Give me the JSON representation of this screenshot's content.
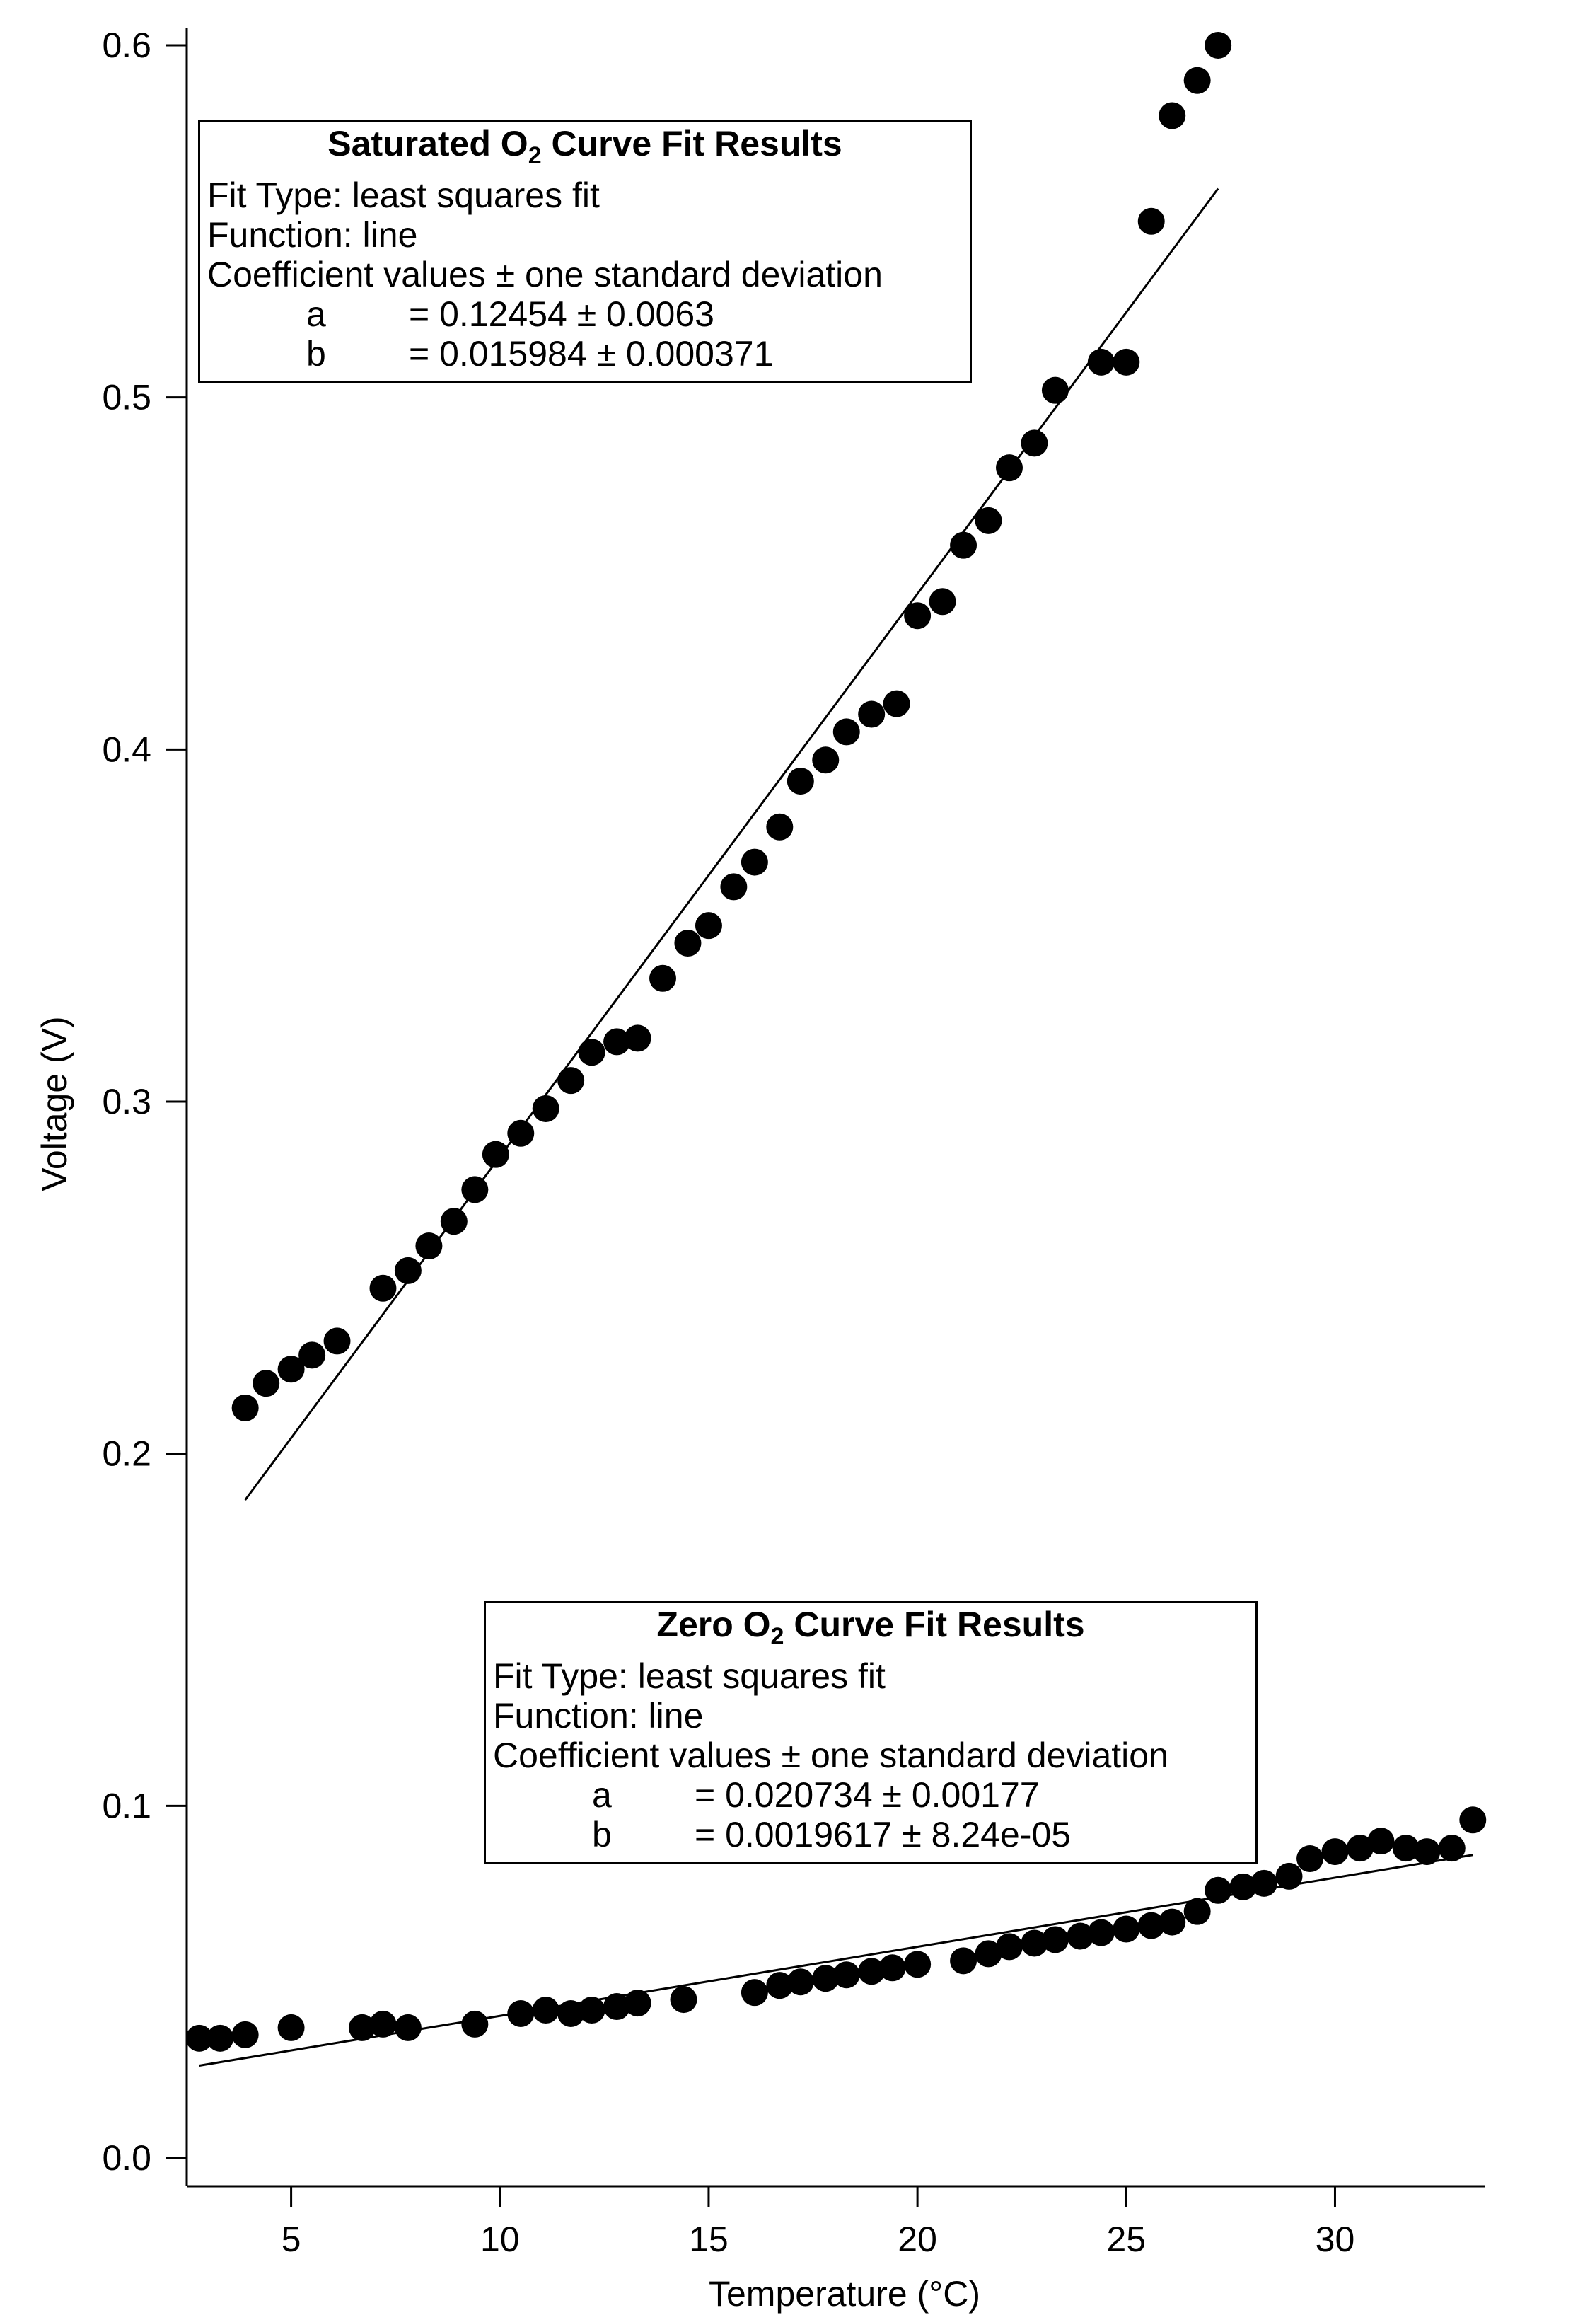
{
  "chart_data": {
    "type": "scatter",
    "title": "",
    "xlabel": "Temperature (°C)",
    "ylabel": "Voltage (V)",
    "xlim": [
      2.5,
      33.6
    ],
    "ylim": [
      -0.002,
      0.602
    ],
    "xticks": [
      5,
      10,
      15,
      20,
      25,
      30
    ],
    "yticks": [
      0.0,
      0.1,
      0.2,
      0.3,
      0.4,
      0.5,
      0.6
    ],
    "xtick_labels": [
      "5",
      "10",
      "15",
      "20",
      "25",
      "30"
    ],
    "ytick_labels": [
      "0.0",
      "0.1",
      "0.2",
      "0.3",
      "0.4",
      "0.5",
      "0.6"
    ],
    "grid": false,
    "legend": "none",
    "marker_color": "#000000",
    "series": [
      {
        "points": [
          [
            3.9,
            0.213
          ],
          [
            4.4,
            0.22
          ],
          [
            5.0,
            0.224
          ],
          [
            5.5,
            0.228
          ],
          [
            6.1,
            0.232
          ],
          [
            7.2,
            0.247
          ],
          [
            7.8,
            0.252
          ],
          [
            8.3,
            0.259
          ],
          [
            8.9,
            0.266
          ],
          [
            9.4,
            0.275
          ],
          [
            9.9,
            0.285
          ],
          [
            10.5,
            0.291
          ],
          [
            11.1,
            0.298
          ],
          [
            11.7,
            0.306
          ],
          [
            12.2,
            0.314
          ],
          [
            12.8,
            0.317
          ],
          [
            13.3,
            0.318
          ],
          [
            13.9,
            0.335
          ],
          [
            14.5,
            0.345
          ],
          [
            15.0,
            0.35
          ],
          [
            15.6,
            0.361
          ],
          [
            16.1,
            0.368
          ],
          [
            16.7,
            0.378
          ],
          [
            17.2,
            0.391
          ],
          [
            17.8,
            0.397
          ],
          [
            18.3,
            0.405
          ],
          [
            18.9,
            0.41
          ],
          [
            19.5,
            0.413
          ],
          [
            20.0,
            0.438
          ],
          [
            20.6,
            0.442
          ],
          [
            21.1,
            0.458
          ],
          [
            21.7,
            0.465
          ],
          [
            22.2,
            0.48
          ],
          [
            22.8,
            0.487
          ],
          [
            23.3,
            0.502
          ],
          [
            24.4,
            0.51
          ],
          [
            25.0,
            0.51
          ],
          [
            25.6,
            0.55
          ],
          [
            26.1,
            0.58
          ],
          [
            26.7,
            0.59
          ],
          [
            27.2,
            0.6
          ]
        ],
        "fit": {
          "a": 0.12454,
          "b": 0.015984,
          "x_range": [
            3.9,
            27.2
          ]
        }
      },
      {
        "points": [
          [
            2.8,
            0.034
          ],
          [
            3.3,
            0.034
          ],
          [
            3.9,
            0.035
          ],
          [
            5.0,
            0.037
          ],
          [
            6.7,
            0.037
          ],
          [
            7.2,
            0.038
          ],
          [
            7.8,
            0.037
          ],
          [
            9.4,
            0.038
          ],
          [
            10.5,
            0.041
          ],
          [
            11.1,
            0.042
          ],
          [
            11.7,
            0.041
          ],
          [
            12.2,
            0.042
          ],
          [
            12.8,
            0.043
          ],
          [
            13.3,
            0.044
          ],
          [
            14.4,
            0.045
          ],
          [
            16.1,
            0.047
          ],
          [
            16.7,
            0.049
          ],
          [
            17.2,
            0.05
          ],
          [
            17.8,
            0.051
          ],
          [
            18.3,
            0.052
          ],
          [
            18.9,
            0.053
          ],
          [
            19.4,
            0.054
          ],
          [
            20.0,
            0.055
          ],
          [
            21.1,
            0.056
          ],
          [
            21.7,
            0.058
          ],
          [
            22.2,
            0.06
          ],
          [
            22.8,
            0.061
          ],
          [
            23.3,
            0.062
          ],
          [
            23.9,
            0.063
          ],
          [
            24.4,
            0.064
          ],
          [
            25.0,
            0.065
          ],
          [
            25.6,
            0.066
          ],
          [
            26.1,
            0.067
          ],
          [
            26.7,
            0.07
          ],
          [
            27.2,
            0.076
          ],
          [
            27.8,
            0.077
          ],
          [
            28.3,
            0.078
          ],
          [
            28.9,
            0.08
          ],
          [
            29.4,
            0.085
          ],
          [
            30.0,
            0.087
          ],
          [
            30.6,
            0.088
          ],
          [
            31.1,
            0.09
          ],
          [
            31.7,
            0.088
          ],
          [
            32.2,
            0.087
          ],
          [
            32.8,
            0.088
          ],
          [
            33.3,
            0.096
          ]
        ],
        "fit": {
          "a": 0.020734,
          "b": 0.0019617,
          "x_range": [
            2.8,
            33.3
          ]
        }
      }
    ],
    "annotations": [
      {
        "title_main": "Saturated O",
        "title_sub": "2",
        "title_rest": " Curve Fit Results",
        "lines": [
          "Fit Type: least squares fit",
          "Function: line",
          "Coefficient values ± one standard deviation"
        ],
        "coefficients": [
          {
            "name": "a",
            "value": "= 0.12454 ± 0.0063"
          },
          {
            "name": "b",
            "value": "= 0.015984 ± 0.000371"
          }
        ]
      },
      {
        "title_main": "Zero O",
        "title_sub": "2",
        "title_rest": " Curve Fit Results",
        "lines": [
          "Fit Type: least squares fit",
          "Function: line",
          "Coefficient values ± one standard deviation"
        ],
        "coefficients": [
          {
            "name": "a",
            "value": "= 0.020734 ± 0.00177"
          },
          {
            "name": "b",
            "value": "= 0.0019617 ± 8.24e-05"
          }
        ]
      }
    ]
  }
}
